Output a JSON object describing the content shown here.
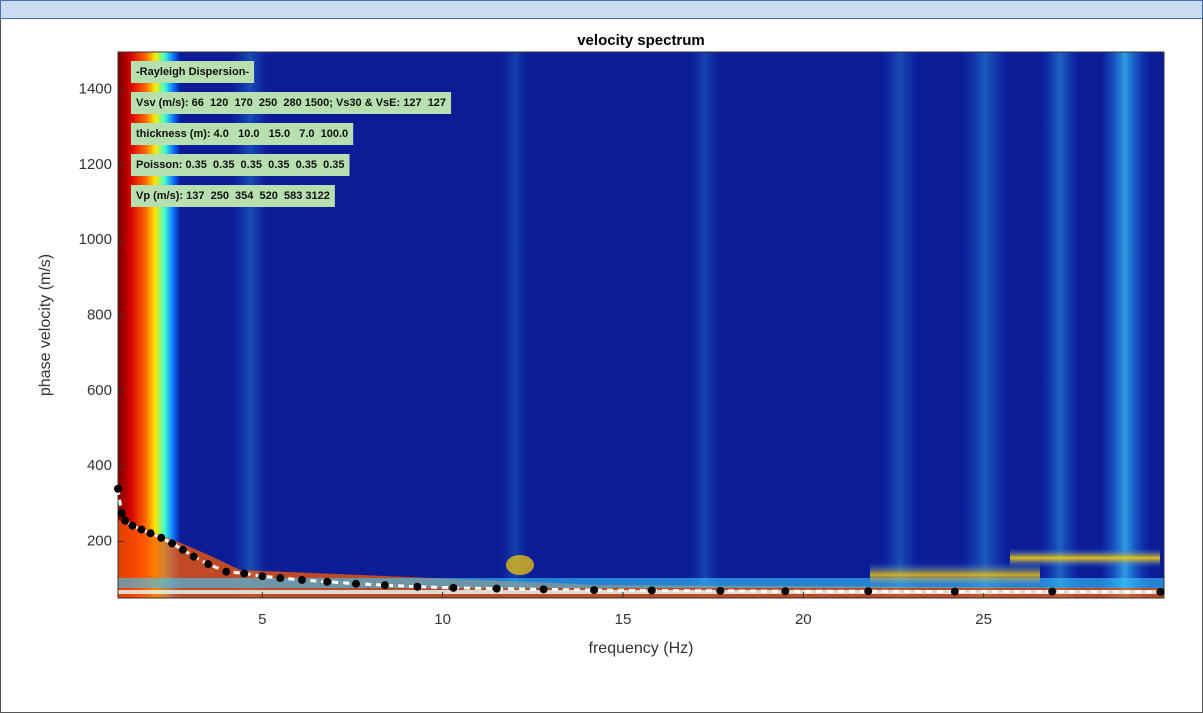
{
  "chart_data": {
    "type": "scatter",
    "title": "velocity spectrum",
    "x_label": "frequency (Hz)",
    "y_label": "phase velocity (m/s)",
    "annotations": [
      "-Rayleigh Dispersion-",
      "Vsv (m/s): 66  120  170  250  280 1500; Vs30 & VsE: 127  127",
      "thickness (m): 4.0   10.0   15.0   7.0  100.0",
      "Poisson: 0.35  0.35  0.35  0.35  0.35  0.35",
      "Vp (m/s): 137  250  354  520  583 3122"
    ],
    "x": [
      1.0,
      1.1,
      1.2,
      1.4,
      1.65,
      1.9,
      2.2,
      2.5,
      2.8,
      3.1,
      3.5,
      4.0,
      4.5,
      5.0,
      5.5,
      6.1,
      6.8,
      7.6,
      8.4,
      9.3,
      10.3,
      11.5,
      12.8,
      14.2,
      15.8,
      17.7,
      19.5,
      21.8,
      24.2,
      26.9,
      29.9
    ],
    "values": [
      340,
      275,
      255,
      242,
      232,
      222,
      210,
      195,
      178,
      160,
      140,
      120,
      115,
      108,
      103,
      98,
      93,
      88,
      84,
      80,
      77,
      75,
      73,
      71,
      70,
      69,
      68,
      68,
      67,
      67,
      66
    ],
    "color": "#000000",
    "xlim": [
      1,
      30
    ],
    "xticks": [
      5,
      10,
      15,
      20,
      25
    ],
    "ylim": [
      50,
      1500
    ],
    "yticks": [
      200,
      400,
      600,
      800,
      1000,
      1200,
      1400
    ],
    "grid": false
  }
}
